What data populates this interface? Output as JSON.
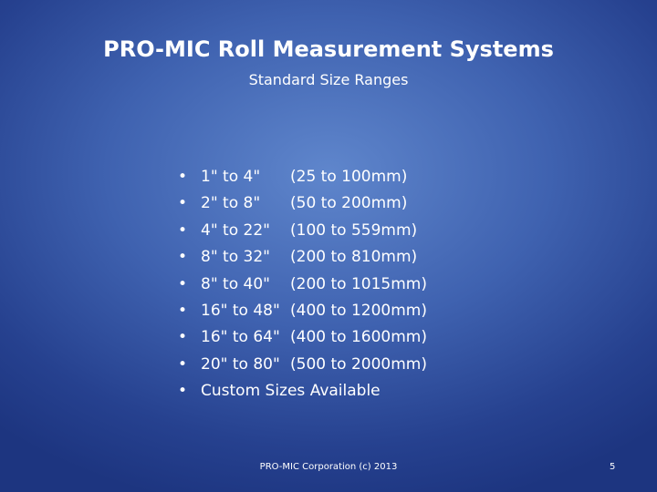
{
  "slide": {
    "title": "PRO-MIC Roll Measurement Systems",
    "subtitle": "Standard Size Ranges",
    "items": [
      {
        "size": "1\" to 4\"",
        "metric": "(25 to 100mm)"
      },
      {
        "size": "2\" to 8\"",
        "metric": "(50 to 200mm)"
      },
      {
        "size": "4\" to 22\"",
        "metric": "(100 to 559mm)"
      },
      {
        "size": "8\" to 32\"",
        "metric": "(200 to 810mm)"
      },
      {
        "size": "8\" to 40\"",
        "metric": "(200 to 1015mm)"
      },
      {
        "size": "16\" to 48\"",
        "metric": "(400 to 1200mm)"
      },
      {
        "size": "16\" to 64\"",
        "metric": "(400 to 1600mm)"
      },
      {
        "size": "20\" to 80\"",
        "metric": "(500 to 2000mm)"
      },
      {
        "size": "Custom Sizes Available"
      }
    ],
    "footer": "PRO-MIC Corporation (c) 2013",
    "page_number": "5"
  }
}
